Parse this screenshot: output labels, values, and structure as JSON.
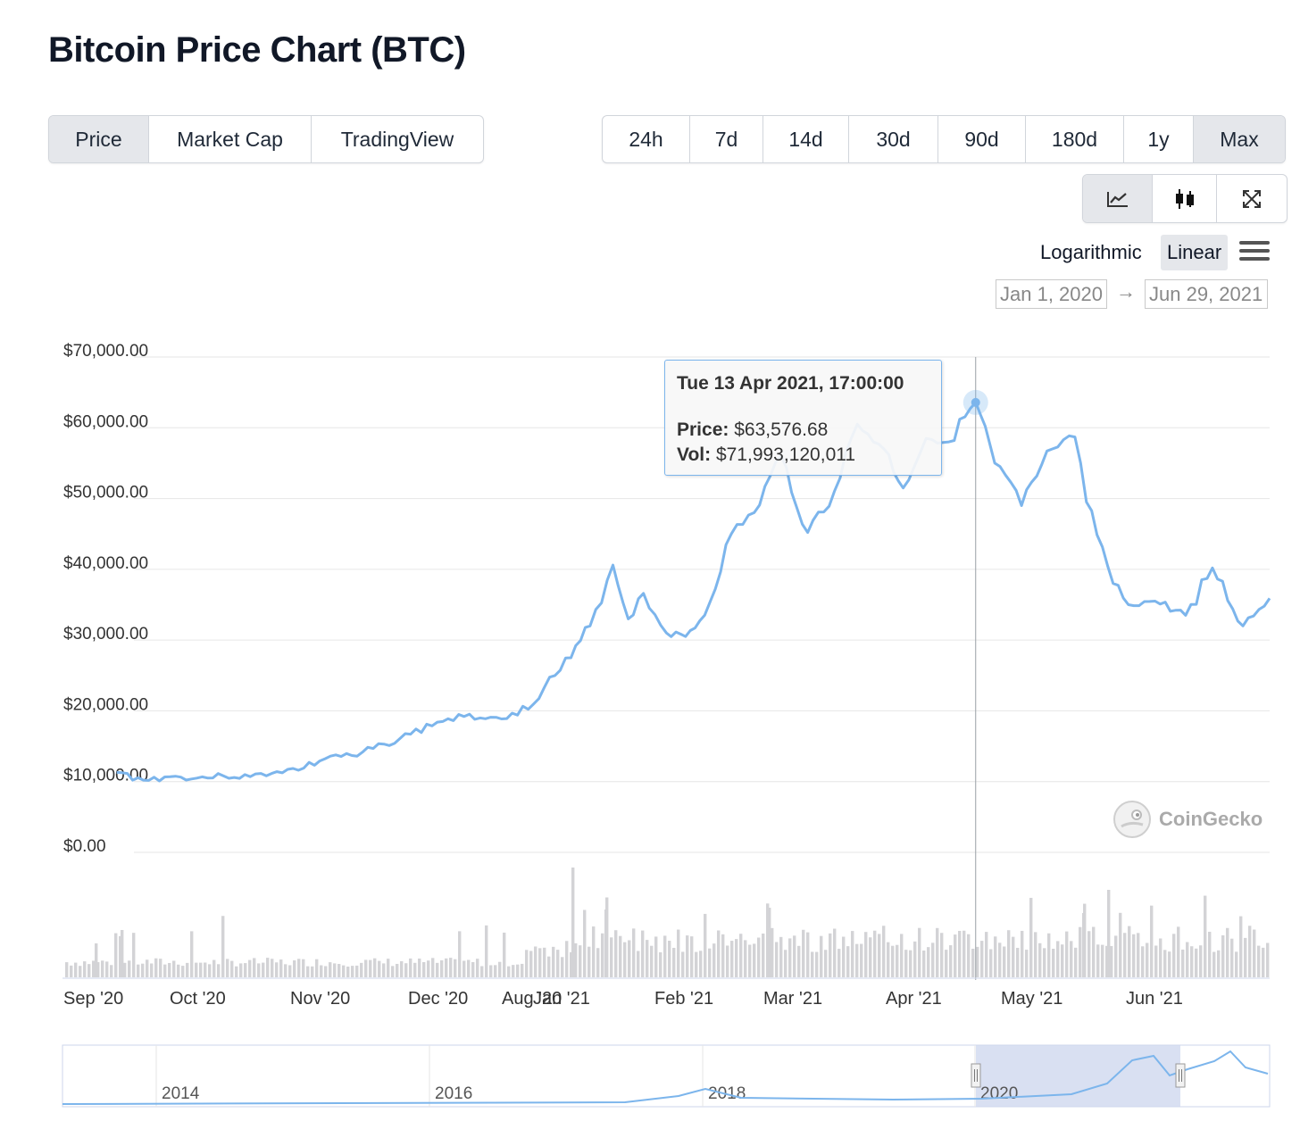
{
  "page": {
    "title": "Bitcoin Price Chart (BTC)"
  },
  "view_tabs": [
    {
      "label": "Price",
      "active": true
    },
    {
      "label": "Market Cap",
      "active": false
    },
    {
      "label": "TradingView",
      "active": false
    }
  ],
  "range_tabs": [
    {
      "label": "24h",
      "active": false
    },
    {
      "label": "7d",
      "active": false
    },
    {
      "label": "14d",
      "active": false
    },
    {
      "label": "30d",
      "active": false
    },
    {
      "label": "90d",
      "active": false
    },
    {
      "label": "180d",
      "active": false
    },
    {
      "label": "1y",
      "active": false
    },
    {
      "label": "Max",
      "active": true
    }
  ],
  "chart_type_buttons": [
    {
      "icon": "line-chart-icon",
      "active": true
    },
    {
      "icon": "candlestick-icon",
      "active": false
    },
    {
      "icon": "expand-icon",
      "active": false
    }
  ],
  "scale": {
    "log_label": "Logarithmic",
    "linear_label": "Linear",
    "selected": "Linear"
  },
  "date_range": {
    "from": "Jan 1, 2020",
    "arrow": "→",
    "to": "Jun 29, 2021"
  },
  "tooltip": {
    "date": "Tue 13 Apr 2021, 17:00:00",
    "price_label": "Price:",
    "price_value": "$63,576.68",
    "vol_label": "Vol:",
    "vol_value": "$71,993,120,011"
  },
  "watermark": {
    "text": "CoinGecko"
  },
  "colors": {
    "line": "#7cb5ec",
    "volume_bar": "#d3d3d6",
    "navigator_mask": "#cfd8ef",
    "grid": "#e6e6e6"
  },
  "chart_data": {
    "type": "line",
    "title": "Bitcoin Price Chart (BTC)",
    "series": [
      {
        "name": "Price",
        "points": [
          [
            "Aug 31 '20",
            11300
          ],
          [
            "Sep 7 '20",
            10200
          ],
          [
            "Sep 14 '20",
            10700
          ],
          [
            "Sep 21 '20",
            10500
          ],
          [
            "Sep 28 '20",
            10800
          ],
          [
            "Oct 5 '20",
            10700
          ],
          [
            "Oct 12 '20",
            11400
          ],
          [
            "Oct 19 '20",
            11900
          ],
          [
            "Oct 26 '20",
            13600
          ],
          [
            "Nov 2 '20",
            13600
          ],
          [
            "Nov 9 '20",
            15300
          ],
          [
            "Nov 16 '20",
            16700
          ],
          [
            "Nov 23 '20",
            18400
          ],
          [
            "Nov 30 '20",
            19200
          ],
          [
            "Dec 7 '20",
            19100
          ],
          [
            "Dec 14 '20",
            19400
          ],
          [
            "Dec 21 '20",
            23300
          ],
          [
            "Dec 28 '20",
            27500
          ],
          [
            "Jan 2 '21",
            32000
          ],
          [
            "Jan 8 '21",
            40600
          ],
          [
            "Jan 12 '21",
            33000
          ],
          [
            "Jan 16 '21",
            36600
          ],
          [
            "Jan 22 '21",
            31000
          ],
          [
            "Jan 27 '21",
            30500
          ],
          [
            "Feb 1 '21",
            33500
          ],
          [
            "Feb 8 '21",
            45000
          ],
          [
            "Feb 14 '21",
            48000
          ],
          [
            "Feb 21 '21",
            56000
          ],
          [
            "Feb 28 '21",
            45200
          ],
          [
            "Mar 7 '21",
            51000
          ],
          [
            "Mar 13 '21",
            60500
          ],
          [
            "Mar 20 '21",
            57000
          ],
          [
            "Mar 25 '21",
            51500
          ],
          [
            "Mar 31 '21",
            58500
          ],
          [
            "Apr 6 '21",
            58000
          ],
          [
            "Apr 13 '21",
            63576.68
          ],
          [
            "Apr 18 '21",
            55000
          ],
          [
            "Apr 25 '21",
            49000
          ],
          [
            "May 3 '21",
            57000
          ],
          [
            "May 9 '21",
            58700
          ],
          [
            "May 12 '21",
            49500
          ],
          [
            "May 19 '21",
            38000
          ],
          [
            "May 23 '21",
            35000
          ],
          [
            "May 30 '21",
            35500
          ],
          [
            "Jun 7 '21",
            33500
          ],
          [
            "Jun 14 '21",
            40200
          ],
          [
            "Jun 22 '21",
            32000
          ],
          [
            "Jun 29 '21",
            35900
          ]
        ]
      }
    ],
    "volume_note": "daily volume bars shown beneath the price line",
    "volume_peaks": [
      {
        "x": "Jan 11 '21",
        "label": "peak"
      },
      {
        "x": "May 19 '21",
        "label": "peak"
      }
    ],
    "y_ticks": [
      "$70,000.00",
      "$60,000.00",
      "$50,000.00",
      "$40,000.00",
      "$30,000.00",
      "$20,000.00",
      "$10,000.00",
      "$0.00"
    ],
    "x_ticks": [
      "Sep '20",
      "Oct '20",
      "Nov '20",
      "Dec '20",
      "Aug '20",
      "Jan '21",
      "Feb '21",
      "Mar '21",
      "Apr '21",
      "May '21",
      "Jun '21"
    ],
    "ylim": [
      0,
      70000
    ],
    "navigator": {
      "ticks": [
        "2014",
        "2016",
        "2018",
        "2020"
      ],
      "selection": "2020 – mid 2021"
    },
    "grid": true,
    "legend": "none"
  }
}
